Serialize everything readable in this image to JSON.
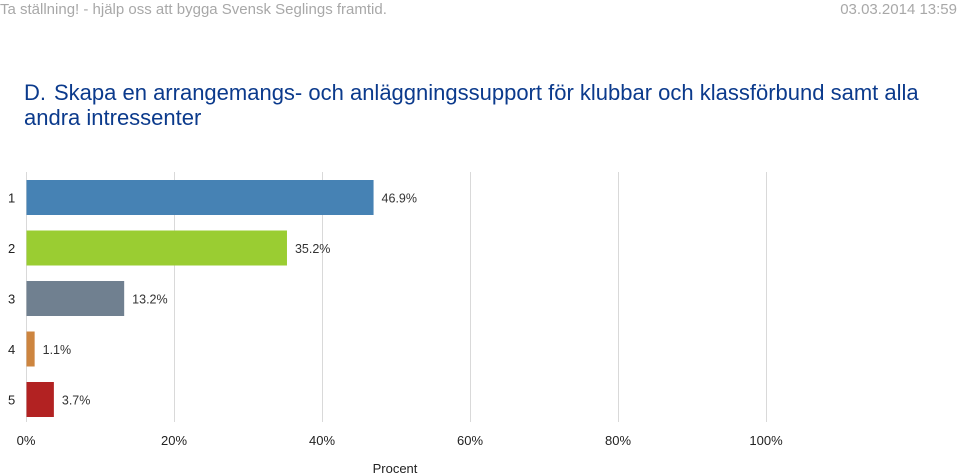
{
  "header": {
    "left_text": "Ta ställning! - hjälp oss att bygga Svensk Seglings framtid.",
    "right_text": "03.03.2014 13:59"
  },
  "chart_data": {
    "type": "bar",
    "orientation": "horizontal",
    "title_prefix": "D.",
    "title": "Skapa en arrangemangs- och anläggningssupport för klubbar och klassförbund samt alla andra intressenter",
    "categories": [
      "1",
      "2",
      "3",
      "4",
      "5"
    ],
    "values": [
      46.9,
      35.2,
      13.2,
      1.1,
      3.7
    ],
    "value_labels": [
      "46.9%",
      "35.2%",
      "13.2%",
      "1.1%",
      "3.7%"
    ],
    "colors": [
      "#4682b4",
      "#9acd32",
      "#708090",
      "#cd853f",
      "#b22222"
    ],
    "xlim": [
      0,
      100
    ],
    "x_ticks": [
      0,
      20,
      40,
      60,
      80,
      100
    ],
    "x_tick_labels": [
      "0%",
      "20%",
      "40%",
      "60%",
      "80%",
      "100%"
    ],
    "xlabel": "Procent",
    "ylabel": "",
    "grid": true
  }
}
